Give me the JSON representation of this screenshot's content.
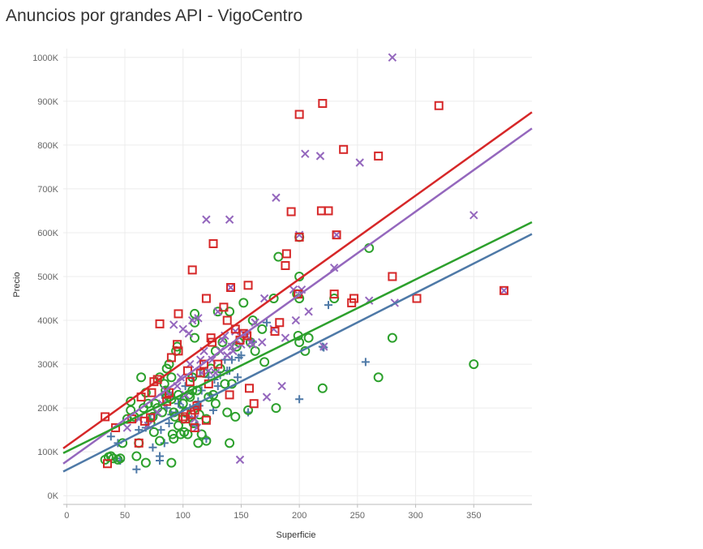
{
  "title": "Anuncios por grandes API - VigoCentro",
  "chart_data": {
    "type": "scatter",
    "title": "Anuncios por grandes API - VigoCentro",
    "xlabel": "Superficie",
    "ylabel": "Precio",
    "xlim": [
      -3,
      400
    ],
    "ylim": [
      -20000,
      1020000
    ],
    "xticks": [
      0,
      50,
      100,
      150,
      200,
      250,
      300,
      350
    ],
    "xtick_labels": [
      "0",
      "50",
      "100",
      "150",
      "200",
      "250",
      "300",
      "350"
    ],
    "yticks": [
      0,
      100000,
      200000,
      300000,
      400000,
      500000,
      600000,
      700000,
      800000,
      900000,
      1000000
    ],
    "ytick_labels": [
      "0K",
      "100K",
      "200K",
      "300K",
      "400K",
      "500K",
      "600K",
      "700K",
      "800K",
      "900K",
      "1000K"
    ],
    "grid": true,
    "legend": "none",
    "series": [
      {
        "marker": "square",
        "color": "#d62728",
        "trend": [
          [
            -3,
            108000
          ],
          [
            400,
            875000
          ]
        ],
        "points": [
          [
            33,
            180000
          ],
          [
            35,
            73000
          ],
          [
            42,
            155000
          ],
          [
            56,
            175000
          ],
          [
            62,
            120000
          ],
          [
            64,
            225000
          ],
          [
            67,
            170000
          ],
          [
            72,
            178000
          ],
          [
            73,
            235000
          ],
          [
            75,
            260000
          ],
          [
            78,
            265000
          ],
          [
            80,
            392000
          ],
          [
            86,
            215000
          ],
          [
            88,
            235000
          ],
          [
            90,
            315000
          ],
          [
            95,
            345000
          ],
          [
            96,
            330000
          ],
          [
            96,
            415000
          ],
          [
            100,
            180000
          ],
          [
            102,
            175000
          ],
          [
            104,
            285000
          ],
          [
            106,
            260000
          ],
          [
            107,
            185000
          ],
          [
            108,
            515000
          ],
          [
            110,
            195000
          ],
          [
            110,
            155000
          ],
          [
            112,
            205000
          ],
          [
            115,
            280000
          ],
          [
            118,
            300000
          ],
          [
            120,
            450000
          ],
          [
            120,
            172000
          ],
          [
            122,
            255000
          ],
          [
            124,
            360000
          ],
          [
            125,
            350000
          ],
          [
            126,
            575000
          ],
          [
            130,
            300000
          ],
          [
            135,
            430000
          ],
          [
            138,
            400000
          ],
          [
            140,
            230000
          ],
          [
            141,
            475000
          ],
          [
            145,
            380000
          ],
          [
            149,
            355000
          ],
          [
            152,
            370000
          ],
          [
            155,
            365000
          ],
          [
            156,
            480000
          ],
          [
            157,
            245000
          ],
          [
            161,
            210000
          ],
          [
            179,
            375000
          ],
          [
            183,
            395000
          ],
          [
            188,
            525000
          ],
          [
            189,
            552000
          ],
          [
            193,
            648000
          ],
          [
            199,
            460000
          ],
          [
            200,
            870000
          ],
          [
            200,
            590000
          ],
          [
            219,
            650000
          ],
          [
            220,
            895000
          ],
          [
            225,
            650000
          ],
          [
            230,
            460000
          ],
          [
            232,
            595000
          ],
          [
            238,
            790000
          ],
          [
            245,
            440000
          ],
          [
            247,
            450000
          ],
          [
            268,
            775000
          ],
          [
            280,
            500000
          ],
          [
            301,
            450000
          ],
          [
            320,
            890000
          ],
          [
            376,
            468000
          ]
        ]
      },
      {
        "marker": "x",
        "color": "#9467bd",
        "trend": [
          [
            -3,
            73000
          ],
          [
            400,
            838000
          ]
        ],
        "points": [
          [
            52,
            155000
          ],
          [
            62,
            175000
          ],
          [
            70,
            160000
          ],
          [
            78,
            190000
          ],
          [
            82,
            210000
          ],
          [
            85,
            240000
          ],
          [
            88,
            230000
          ],
          [
            92,
            390000
          ],
          [
            95,
            250000
          ],
          [
            98,
            270000
          ],
          [
            100,
            380000
          ],
          [
            102,
            230000
          ],
          [
            105,
            370000
          ],
          [
            106,
            300000
          ],
          [
            108,
            400000
          ],
          [
            110,
            175000
          ],
          [
            112,
            155000
          ],
          [
            113,
            405000
          ],
          [
            115,
            310000
          ],
          [
            116,
            280000
          ],
          [
            118,
            330000
          ],
          [
            120,
            630000
          ],
          [
            122,
            285000
          ],
          [
            125,
            310000
          ],
          [
            128,
            280000
          ],
          [
            130,
            420000
          ],
          [
            132,
            330000
          ],
          [
            134,
            355000
          ],
          [
            136,
            365000
          ],
          [
            138,
            320000
          ],
          [
            140,
            630000
          ],
          [
            141,
            475000
          ],
          [
            142,
            340000
          ],
          [
            143,
            330000
          ],
          [
            145,
            375000
          ],
          [
            149,
            82000
          ],
          [
            150,
            345000
          ],
          [
            152,
            370000
          ],
          [
            155,
            365000
          ],
          [
            158,
            350000
          ],
          [
            160,
            345000
          ],
          [
            162,
            395000
          ],
          [
            168,
            350000
          ],
          [
            170,
            450000
          ],
          [
            172,
            225000
          ],
          [
            178,
            380000
          ],
          [
            180,
            680000
          ],
          [
            185,
            250000
          ],
          [
            188,
            360000
          ],
          [
            195,
            470000
          ],
          [
            197,
            400000
          ],
          [
            200,
            595000
          ],
          [
            202,
            470000
          ],
          [
            205,
            780000
          ],
          [
            208,
            420000
          ],
          [
            218,
            775000
          ],
          [
            221,
            340000
          ],
          [
            230,
            520000
          ],
          [
            232,
            595000
          ],
          [
            252,
            760000
          ],
          [
            260,
            445000
          ],
          [
            280,
            1000000
          ],
          [
            282,
            440000
          ],
          [
            350,
            640000
          ],
          [
            376,
            468000
          ]
        ]
      },
      {
        "marker": "circle",
        "color": "#2ca02c",
        "trend": [
          [
            -3,
            97000
          ],
          [
            400,
            624000
          ]
        ],
        "points": [
          [
            33,
            82000
          ],
          [
            36,
            88000
          ],
          [
            38,
            90000
          ],
          [
            40,
            85000
          ],
          [
            44,
            82000
          ],
          [
            46,
            85000
          ],
          [
            48,
            120000
          ],
          [
            52,
            175000
          ],
          [
            55,
            215000
          ],
          [
            55,
            195000
          ],
          [
            58,
            180000
          ],
          [
            60,
            90000
          ],
          [
            62,
            120000
          ],
          [
            64,
            270000
          ],
          [
            66,
            200000
          ],
          [
            68,
            235000
          ],
          [
            68,
            75000
          ],
          [
            70,
            210000
          ],
          [
            72,
            165000
          ],
          [
            74,
            180000
          ],
          [
            75,
            145000
          ],
          [
            76,
            210000
          ],
          [
            78,
            200000
          ],
          [
            80,
            270000
          ],
          [
            80,
            125000
          ],
          [
            82,
            190000
          ],
          [
            84,
            255000
          ],
          [
            85,
            240000
          ],
          [
            86,
            290000
          ],
          [
            86,
            230000
          ],
          [
            88,
            225000
          ],
          [
            88,
            300000
          ],
          [
            90,
            270000
          ],
          [
            90,
            220000
          ],
          [
            90,
            75000
          ],
          [
            91,
            140000
          ],
          [
            92,
            190000
          ],
          [
            92,
            130000
          ],
          [
            93,
            180000
          ],
          [
            94,
            330000
          ],
          [
            95,
            340000
          ],
          [
            96,
            230000
          ],
          [
            96,
            160000
          ],
          [
            98,
            140000
          ],
          [
            100,
            210000
          ],
          [
            100,
            175000
          ],
          [
            101,
            145000
          ],
          [
            102,
            190000
          ],
          [
            104,
            140000
          ],
          [
            105,
            230000
          ],
          [
            106,
            225000
          ],
          [
            108,
            270000
          ],
          [
            108,
            240000
          ],
          [
            109,
            165000
          ],
          [
            110,
            415000
          ],
          [
            110,
            395000
          ],
          [
            110,
            360000
          ],
          [
            112,
            240000
          ],
          [
            113,
            120000
          ],
          [
            114,
            185000
          ],
          [
            116,
            140000
          ],
          [
            118,
            280000
          ],
          [
            120,
            125000
          ],
          [
            120,
            175000
          ],
          [
            122,
            225000
          ],
          [
            124,
            290000
          ],
          [
            126,
            230000
          ],
          [
            128,
            330000
          ],
          [
            128,
            210000
          ],
          [
            130,
            420000
          ],
          [
            132,
            290000
          ],
          [
            134,
            350000
          ],
          [
            136,
            255000
          ],
          [
            138,
            190000
          ],
          [
            140,
            120000
          ],
          [
            140,
            420000
          ],
          [
            142,
            255000
          ],
          [
            145,
            180000
          ],
          [
            146,
            340000
          ],
          [
            148,
            350000
          ],
          [
            152,
            440000
          ],
          [
            156,
            195000
          ],
          [
            158,
            350000
          ],
          [
            160,
            400000
          ],
          [
            162,
            330000
          ],
          [
            168,
            380000
          ],
          [
            170,
            305000
          ],
          [
            178,
            450000
          ],
          [
            180,
            200000
          ],
          [
            182,
            545000
          ],
          [
            198,
            460000
          ],
          [
            199,
            365000
          ],
          [
            200,
            590000
          ],
          [
            200,
            500000
          ],
          [
            200,
            450000
          ],
          [
            200,
            350000
          ],
          [
            205,
            330000
          ],
          [
            208,
            360000
          ],
          [
            220,
            245000
          ],
          [
            230,
            450000
          ],
          [
            260,
            565000
          ],
          [
            268,
            270000
          ],
          [
            280,
            360000
          ],
          [
            350,
            300000
          ]
        ]
      },
      {
        "marker": "plus",
        "color": "#4e79a7",
        "trend": [
          [
            -3,
            55000
          ],
          [
            400,
            597000
          ]
        ],
        "points": [
          [
            38,
            135000
          ],
          [
            42,
            85000
          ],
          [
            44,
            120000
          ],
          [
            46,
            80000
          ],
          [
            60,
            60000
          ],
          [
            62,
            150000
          ],
          [
            68,
            155000
          ],
          [
            72,
            175000
          ],
          [
            74,
            110000
          ],
          [
            76,
            185000
          ],
          [
            80,
            80000
          ],
          [
            80,
            90000
          ],
          [
            81,
            150000
          ],
          [
            82,
            230000
          ],
          [
            84,
            120000
          ],
          [
            86,
            200000
          ],
          [
            88,
            165000
          ],
          [
            90,
            185000
          ],
          [
            94,
            190000
          ],
          [
            96,
            210000
          ],
          [
            98,
            220000
          ],
          [
            100,
            200000
          ],
          [
            102,
            250000
          ],
          [
            104,
            180000
          ],
          [
            106,
            200000
          ],
          [
            108,
            270000
          ],
          [
            110,
            200000
          ],
          [
            111,
            160000
          ],
          [
            113,
            215000
          ],
          [
            114,
            205000
          ],
          [
            116,
            240000
          ],
          [
            120,
            130000
          ],
          [
            122,
            270000
          ],
          [
            124,
            230000
          ],
          [
            126,
            195000
          ],
          [
            127,
            265000
          ],
          [
            130,
            250000
          ],
          [
            132,
            275000
          ],
          [
            136,
            310000
          ],
          [
            138,
            285000
          ],
          [
            140,
            285000
          ],
          [
            142,
            310000
          ],
          [
            147,
            270000
          ],
          [
            148,
            315000
          ],
          [
            150,
            320000
          ],
          [
            156,
            190000
          ],
          [
            158,
            355000
          ],
          [
            160,
            350000
          ],
          [
            172,
            395000
          ],
          [
            200,
            220000
          ],
          [
            220,
            340000
          ],
          [
            221,
            338000
          ],
          [
            225,
            435000
          ],
          [
            257,
            305000
          ]
        ]
      }
    ]
  }
}
